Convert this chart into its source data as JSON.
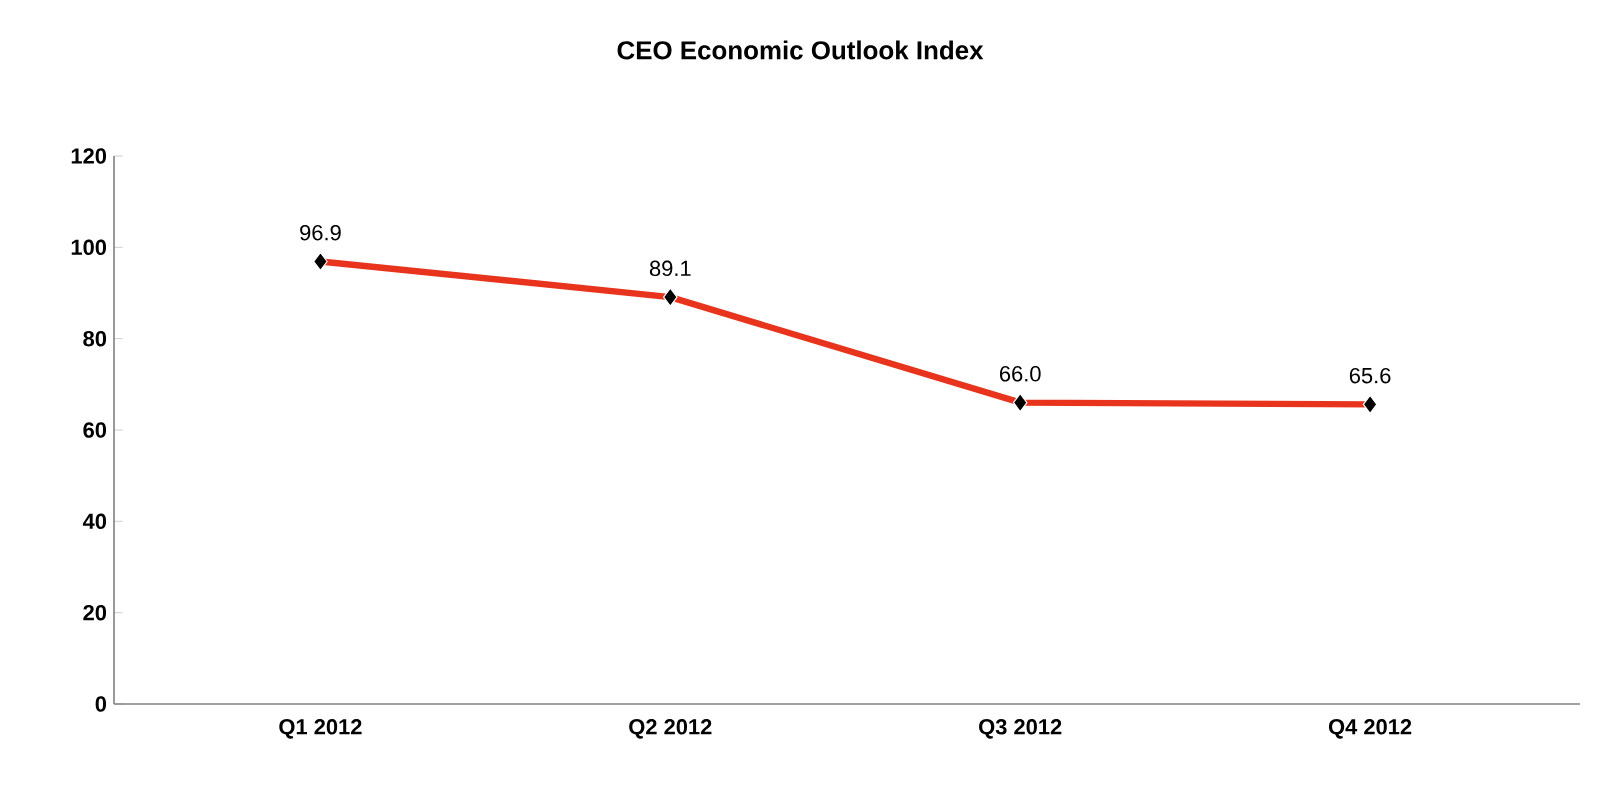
{
  "chart_data": {
    "type": "line",
    "title": "CEO Economic Outlook Index",
    "categories": [
      "Q1 2012",
      "Q2 2012",
      "Q3 2012",
      "Q4 2012"
    ],
    "series": [
      {
        "color": "#e8341c",
        "values": [
          96.9,
          89.1,
          66.0,
          65.6
        ],
        "value_labels": [
          "96.9",
          "89.1",
          "66.0",
          "65.6"
        ]
      }
    ],
    "ylim": [
      0,
      120
    ],
    "yticks": [
      0,
      20,
      40,
      60,
      80,
      100,
      120
    ],
    "marker": "diamond",
    "line_style": "solid",
    "grid": false
  }
}
